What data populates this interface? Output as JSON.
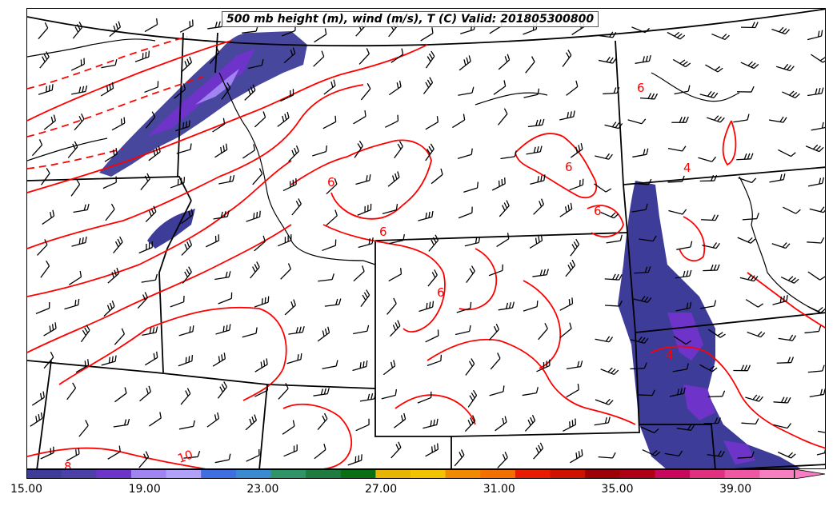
{
  "title": "500 mb height (m), wind (m/s), T (C) Valid: 201805300800",
  "colorbar": {
    "min": 15.0,
    "max": 41.0,
    "colors": [
      "#3d3d99",
      "#4b3fa8",
      "#6e33c8",
      "#9f84f2",
      "#b1a1fb",
      "#3d6fe0",
      "#3a8ad1",
      "#2f9467",
      "#1e7d3e",
      "#0a6e12",
      "#e6b600",
      "#f2c300",
      "#f28a00",
      "#f26f00",
      "#e81c00",
      "#cf1200",
      "#9d0007",
      "#b00018",
      "#c9075d",
      "#e0307f",
      "#ef57a3",
      "#f77ec0"
    ],
    "tick_labels": [
      "15.00",
      "19.00",
      "23.00",
      "27.00",
      "31.00",
      "35.00",
      "39.00"
    ],
    "tick_values": [
      15,
      19,
      23,
      27,
      31,
      35,
      39
    ]
  },
  "contour_labels": [
    "6",
    "6",
    "6",
    "6",
    "6",
    "6",
    "4",
    "4",
    "10",
    "8"
  ],
  "colors": {
    "temperature_contour": "#ff0000",
    "state_lines": "#000000",
    "wind_barbs": "#000000"
  }
}
